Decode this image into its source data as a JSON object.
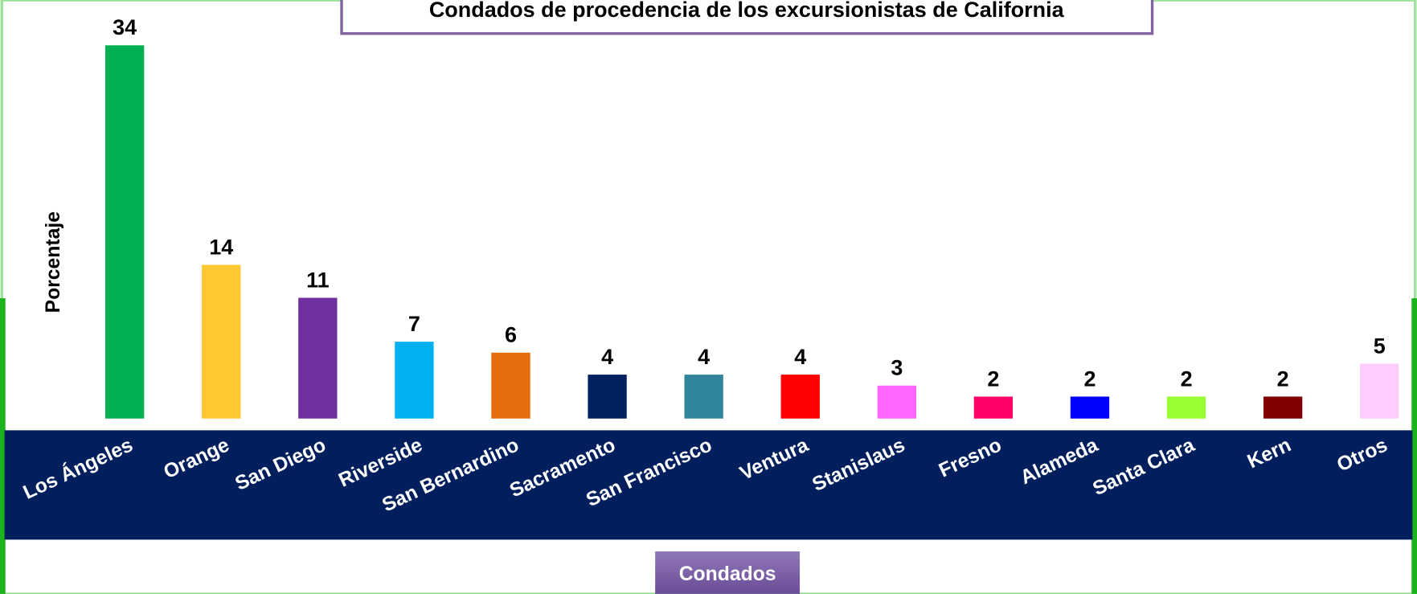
{
  "chart_data": {
    "type": "bar",
    "title": "Condados de procedencia de los excursionistas de California",
    "y_label": "Porcentaje",
    "x_label": "Condados",
    "categories": [
      "Los Ángeles",
      "Orange",
      "San Diego",
      "Riverside",
      "San Bernardino",
      "Sacramento",
      "San Francisco",
      "Ventura",
      "Stanislaus",
      "Fresno",
      "Alameda",
      "Santa Clara",
      "Kern",
      "Otros"
    ],
    "values": [
      34,
      14,
      11,
      7,
      6,
      4,
      4,
      4,
      3,
      2,
      2,
      2,
      2,
      5
    ],
    "colors": [
      "#00b050",
      "#ffc832",
      "#7030a0",
      "#00b0f0",
      "#e46c0a",
      "#002060",
      "#31859c",
      "#ff0000",
      "#ff66ff",
      "#ff0066",
      "#0000ff",
      "#99ff33",
      "#7f0000",
      "#ffccff"
    ]
  }
}
